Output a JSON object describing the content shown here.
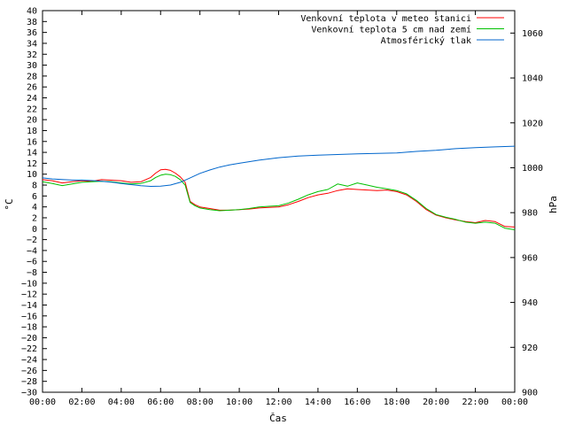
{
  "chart_data": {
    "type": "line",
    "title": "",
    "xlabel": "Čas",
    "ylabel": "°C",
    "y2label": "hPa",
    "grid": false,
    "legend_position": "top-right",
    "x_ticks": [
      "00:00",
      "02:00",
      "04:00",
      "06:00",
      "08:00",
      "10:00",
      "12:00",
      "14:00",
      "16:00",
      "18:00",
      "20:00",
      "22:00",
      "00:00"
    ],
    "xlim": [
      0,
      24
    ],
    "ylim": [
      -30,
      40
    ],
    "y_ticks": [
      "40",
      "38",
      "36",
      "34",
      "32",
      "30",
      "28",
      "26",
      "24",
      "22",
      "20",
      "18",
      "16",
      "14",
      "12",
      "10",
      "8",
      "6",
      "4",
      "2",
      "0",
      "−2",
      "−4",
      "−6",
      "−8",
      "−10",
      "−12",
      "−14",
      "−16",
      "−18",
      "−20",
      "−22",
      "−24",
      "−26",
      "−28",
      "−30"
    ],
    "y2lim": [
      900,
      1070
    ],
    "y2_ticks": [
      "1060",
      "1040",
      "1020",
      "1000",
      "980",
      "960",
      "940",
      "920",
      "900"
    ],
    "series": [
      {
        "name": "Venkovní teplota v meteo stanici",
        "color": "#ff0000",
        "axis": "left",
        "x": [
          0,
          0.5,
          1,
          1.5,
          2,
          2.5,
          3,
          3.5,
          4,
          4.5,
          5,
          5.5,
          5.75,
          6,
          6.25,
          6.5,
          6.75,
          7,
          7.25,
          7.5,
          7.75,
          8,
          8.5,
          9,
          9.5,
          10,
          10.5,
          11,
          11.5,
          12,
          12.5,
          13,
          13.5,
          14,
          14.5,
          15,
          15.5,
          16,
          16.5,
          17,
          17.5,
          18,
          18.5,
          19,
          19.5,
          20,
          20.5,
          21,
          21.5,
          22,
          22.5,
          23,
          23.5,
          24
        ],
        "values": [
          9.0,
          8.8,
          8.4,
          8.6,
          8.8,
          8.7,
          9.0,
          8.9,
          8.8,
          8.5,
          8.6,
          9.4,
          10.2,
          10.8,
          10.9,
          10.7,
          10.2,
          9.5,
          8.5,
          5.0,
          4.4,
          4.0,
          3.7,
          3.4,
          3.4,
          3.5,
          3.6,
          3.8,
          3.9,
          4.0,
          4.4,
          5.0,
          5.7,
          6.2,
          6.5,
          7.0,
          7.3,
          7.2,
          7.1,
          7.0,
          7.1,
          6.8,
          6.2,
          5.0,
          3.5,
          2.5,
          2.0,
          1.6,
          1.3,
          1.1,
          1.5,
          1.3,
          0.4,
          0.3
        ]
      },
      {
        "name": "Venkovní teplota 5 cm nad zemí",
        "color": "#00c000",
        "axis": "left",
        "x": [
          0,
          0.5,
          1,
          1.5,
          2,
          2.5,
          3,
          3.5,
          4,
          4.5,
          5,
          5.5,
          5.75,
          6,
          6.25,
          6.5,
          6.75,
          7,
          7.25,
          7.5,
          7.75,
          8,
          8.5,
          9,
          9.5,
          10,
          10.5,
          11,
          11.5,
          12,
          12.5,
          13,
          13.5,
          14,
          14.5,
          15,
          15.5,
          16,
          16.5,
          17,
          17.5,
          18,
          18.5,
          19,
          19.5,
          20,
          20.5,
          21,
          21.5,
          22,
          22.5,
          23,
          23.5,
          24
        ],
        "values": [
          8.6,
          8.3,
          7.9,
          8.2,
          8.5,
          8.6,
          8.7,
          8.6,
          8.4,
          8.2,
          8.3,
          8.8,
          9.4,
          9.8,
          10.0,
          9.9,
          9.6,
          9.0,
          8.0,
          4.8,
          4.2,
          3.8,
          3.5,
          3.3,
          3.4,
          3.5,
          3.7,
          4.0,
          4.1,
          4.2,
          4.7,
          5.4,
          6.2,
          6.8,
          7.2,
          8.2,
          7.8,
          8.4,
          8.0,
          7.6,
          7.3,
          7.0,
          6.4,
          5.2,
          3.7,
          2.6,
          2.1,
          1.7,
          1.2,
          1.0,
          1.2,
          1.0,
          0.1,
          -0.2
        ]
      },
      {
        "name": "Atmosférický tlak",
        "color": "#0066cc",
        "axis": "right",
        "x": [
          0,
          0.5,
          1,
          1.5,
          2,
          2.5,
          3,
          3.5,
          4,
          4.5,
          5,
          5.5,
          6,
          6.5,
          7,
          7.5,
          8,
          8.5,
          9,
          9.5,
          10,
          11,
          12,
          13,
          14,
          15,
          16,
          17,
          18,
          19,
          20,
          21,
          22,
          23,
          24
        ],
        "values": [
          995.5,
          995.0,
          994.8,
          994.5,
          994.5,
          994.3,
          994.0,
          993.6,
          993.0,
          992.5,
          992.0,
          991.7,
          991.8,
          992.3,
          993.5,
          995.5,
          997.5,
          999.0,
          1000.3,
          1001.3,
          1002.0,
          1003.4,
          1004.5,
          1005.2,
          1005.6,
          1005.9,
          1006.2,
          1006.4,
          1006.6,
          1007.3,
          1007.8,
          1008.5,
          1009.0,
          1009.3,
          1009.6
        ]
      }
    ]
  }
}
